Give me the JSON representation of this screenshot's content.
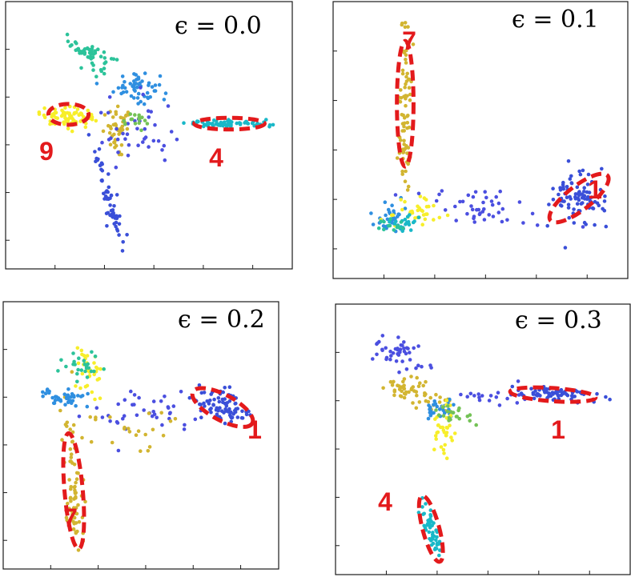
{
  "colors": {
    "digit_0": "#4b4fe0",
    "digit_1": "#3a4fd8",
    "digit_2": "#2f8fe0",
    "digit_3": "#1fa8d9",
    "digit_4": "#19b8c8",
    "digit_5": "#2cc39a",
    "digit_6": "#74c256",
    "digit_7": "#d2b531",
    "digit_8": "#f0dc1e",
    "digit_9": "#f7ee2a",
    "annotation": "#e31a1c"
  },
  "chart_data": [
    {
      "type": "scatter",
      "title": "ϵ = 0.0",
      "xlim": [
        0,
        10
      ],
      "ylim": [
        0,
        10
      ],
      "clusters": [
        {
          "color": "#2cc39a",
          "center": [
            2.7,
            8.5
          ],
          "spread": [
            0.5,
            0.25
          ],
          "angle": -35,
          "n": 55
        },
        {
          "color": "#2f8fe0",
          "center": [
            4.5,
            7.1
          ],
          "spread": [
            0.45,
            0.35
          ],
          "angle": 0,
          "n": 55
        },
        {
          "color": "#f7ee2a",
          "center": [
            1.75,
            5.8
          ],
          "spread": [
            0.55,
            0.2
          ],
          "angle": -5,
          "n": 70
        },
        {
          "color": "#d2b531",
          "center": [
            3.8,
            5.2
          ],
          "spread": [
            0.3,
            0.45
          ],
          "angle": 0,
          "n": 45
        },
        {
          "color": "#19b8c8",
          "center": [
            8.2,
            5.5
          ],
          "spread": [
            0.85,
            0.08
          ],
          "angle": 0,
          "n": 70
        },
        {
          "color": "#3a4fd8",
          "center": [
            3.4,
            2.4
          ],
          "spread": [
            0.12,
            1.0
          ],
          "angle": 12,
          "n": 60
        },
        {
          "color": "#4b4fe0",
          "center": [
            4.4,
            5.0
          ],
          "spread": [
            0.8,
            0.8
          ],
          "angle": 0,
          "n": 40
        },
        {
          "color": "#74c256",
          "center": [
            4.5,
            5.6
          ],
          "spread": [
            0.3,
            0.2
          ],
          "angle": 0,
          "n": 15
        }
      ],
      "circled": [
        {
          "label": "9",
          "center": [
            1.8,
            5.9
          ],
          "radii": [
            0.8,
            0.45
          ]
        },
        {
          "label": "4",
          "center": [
            8.2,
            5.5
          ],
          "radii": [
            1.4,
            0.25
          ]
        }
      ]
    },
    {
      "type": "scatter",
      "title": "ϵ = 0.1",
      "xlim": [
        0,
        10
      ],
      "ylim": [
        0,
        10
      ],
      "clusters": [
        {
          "color": "#d2b531",
          "center": [
            2.1,
            6.5
          ],
          "spread": [
            0.12,
            2.2
          ],
          "angle": 0,
          "n": 80
        },
        {
          "color": "#3a4fd8",
          "center": [
            8.8,
            2.6
          ],
          "spread": [
            0.5,
            0.6
          ],
          "angle": 35,
          "n": 90
        },
        {
          "color": "#2f8fe0",
          "center": [
            1.5,
            1.8
          ],
          "spread": [
            0.35,
            0.3
          ],
          "angle": 0,
          "n": 40
        },
        {
          "color": "#f7ee2a",
          "center": [
            2.5,
            2.0
          ],
          "spread": [
            0.6,
            0.35
          ],
          "angle": 0,
          "n": 35
        },
        {
          "color": "#4b4fe0",
          "center": [
            5.0,
            2.2
          ],
          "spread": [
            1.5,
            0.4
          ],
          "angle": -10,
          "n": 45
        },
        {
          "color": "#19b8c8",
          "center": [
            2.0,
            1.6
          ],
          "spread": [
            0.25,
            0.2
          ],
          "angle": 0,
          "n": 20
        },
        {
          "color": "#2cc39a",
          "center": [
            1.7,
            1.5
          ],
          "spread": [
            0.2,
            0.15
          ],
          "angle": 0,
          "n": 15
        }
      ],
      "circled": [
        {
          "label": "7",
          "center": [
            2.1,
            6.5
          ],
          "radii": [
            0.32,
            2.6
          ]
        },
        {
          "label": "1",
          "center": [
            8.8,
            2.6
          ],
          "radii": [
            1.4,
            0.5
          ],
          "angle": 38
        }
      ]
    },
    {
      "type": "scatter",
      "title": "ϵ = 0.2",
      "xlim": [
        0,
        10
      ],
      "ylim": [
        0,
        10
      ],
      "clusters": [
        {
          "color": "#d2b531",
          "center": [
            2.2,
            2.6
          ],
          "spread": [
            0.2,
            2.0
          ],
          "angle": 5,
          "n": 80
        },
        {
          "color": "#3a4fd8",
          "center": [
            8.4,
            6.2
          ],
          "spread": [
            0.6,
            0.35
          ],
          "angle": -25,
          "n": 80
        },
        {
          "color": "#2f8fe0",
          "center": [
            1.8,
            6.6
          ],
          "spread": [
            0.5,
            0.2
          ],
          "angle": 0,
          "n": 40
        },
        {
          "color": "#f7ee2a",
          "center": [
            2.8,
            7.6
          ],
          "spread": [
            0.3,
            0.6
          ],
          "angle": 0,
          "n": 35
        },
        {
          "color": "#2cc39a",
          "center": [
            2.6,
            8.0
          ],
          "spread": [
            0.4,
            0.3
          ],
          "angle": 0,
          "n": 25
        },
        {
          "color": "#4b4fe0",
          "center": [
            5.5,
            6.0
          ],
          "spread": [
            1.4,
            0.5
          ],
          "angle": 0,
          "n": 40
        },
        {
          "color": "#d2b531",
          "center": [
            4.2,
            5.3
          ],
          "spread": [
            1.0,
            0.6
          ],
          "angle": 0,
          "n": 25
        }
      ],
      "circled": [
        {
          "label": "1",
          "center": [
            8.4,
            6.2
          ],
          "radii": [
            1.4,
            0.55
          ],
          "angle": -28
        },
        {
          "label": "7",
          "center": [
            2.2,
            2.6
          ],
          "radii": [
            0.38,
            2.5
          ],
          "angle": 5
        }
      ]
    },
    {
      "type": "scatter",
      "title": "ϵ = 0.3",
      "xlim": [
        0,
        10
      ],
      "ylim": [
        0,
        10
      ],
      "clusters": [
        {
          "color": "#3a4fd8",
          "center": [
            7.6,
            6.9
          ],
          "spread": [
            0.9,
            0.15
          ],
          "angle": -5,
          "n": 70
        },
        {
          "color": "#19b8c8",
          "center": [
            3.0,
            1.2
          ],
          "spread": [
            0.12,
            0.8
          ],
          "angle": 15,
          "n": 55
        },
        {
          "color": "#4b4fe0",
          "center": [
            1.8,
            8.6
          ],
          "spread": [
            0.5,
            0.3
          ],
          "angle": -30,
          "n": 45
        },
        {
          "color": "#d2b531",
          "center": [
            2.3,
            7.0
          ],
          "spread": [
            0.6,
            0.25
          ],
          "angle": -20,
          "n": 55
        },
        {
          "color": "#2f8fe0",
          "center": [
            3.4,
            6.3
          ],
          "spread": [
            0.4,
            0.3
          ],
          "angle": 0,
          "n": 30
        },
        {
          "color": "#f7ee2a",
          "center": [
            3.5,
            5.5
          ],
          "spread": [
            0.2,
            0.6
          ],
          "angle": 0,
          "n": 35
        },
        {
          "color": "#74c256",
          "center": [
            4.0,
            6.0
          ],
          "spread": [
            0.4,
            0.2
          ],
          "angle": 0,
          "n": 20
        },
        {
          "color": "#4b4fe0",
          "center": [
            5.3,
            6.8
          ],
          "spread": [
            0.8,
            0.3
          ],
          "angle": 0,
          "n": 20
        }
      ],
      "circled": [
        {
          "label": "1",
          "center": [
            7.7,
            6.9
          ],
          "radii": [
            1.65,
            0.28
          ],
          "angle": -4
        },
        {
          "label": "4",
          "center": [
            3.0,
            1.2
          ],
          "radii": [
            0.32,
            1.45
          ],
          "angle": 15
        }
      ]
    }
  ]
}
